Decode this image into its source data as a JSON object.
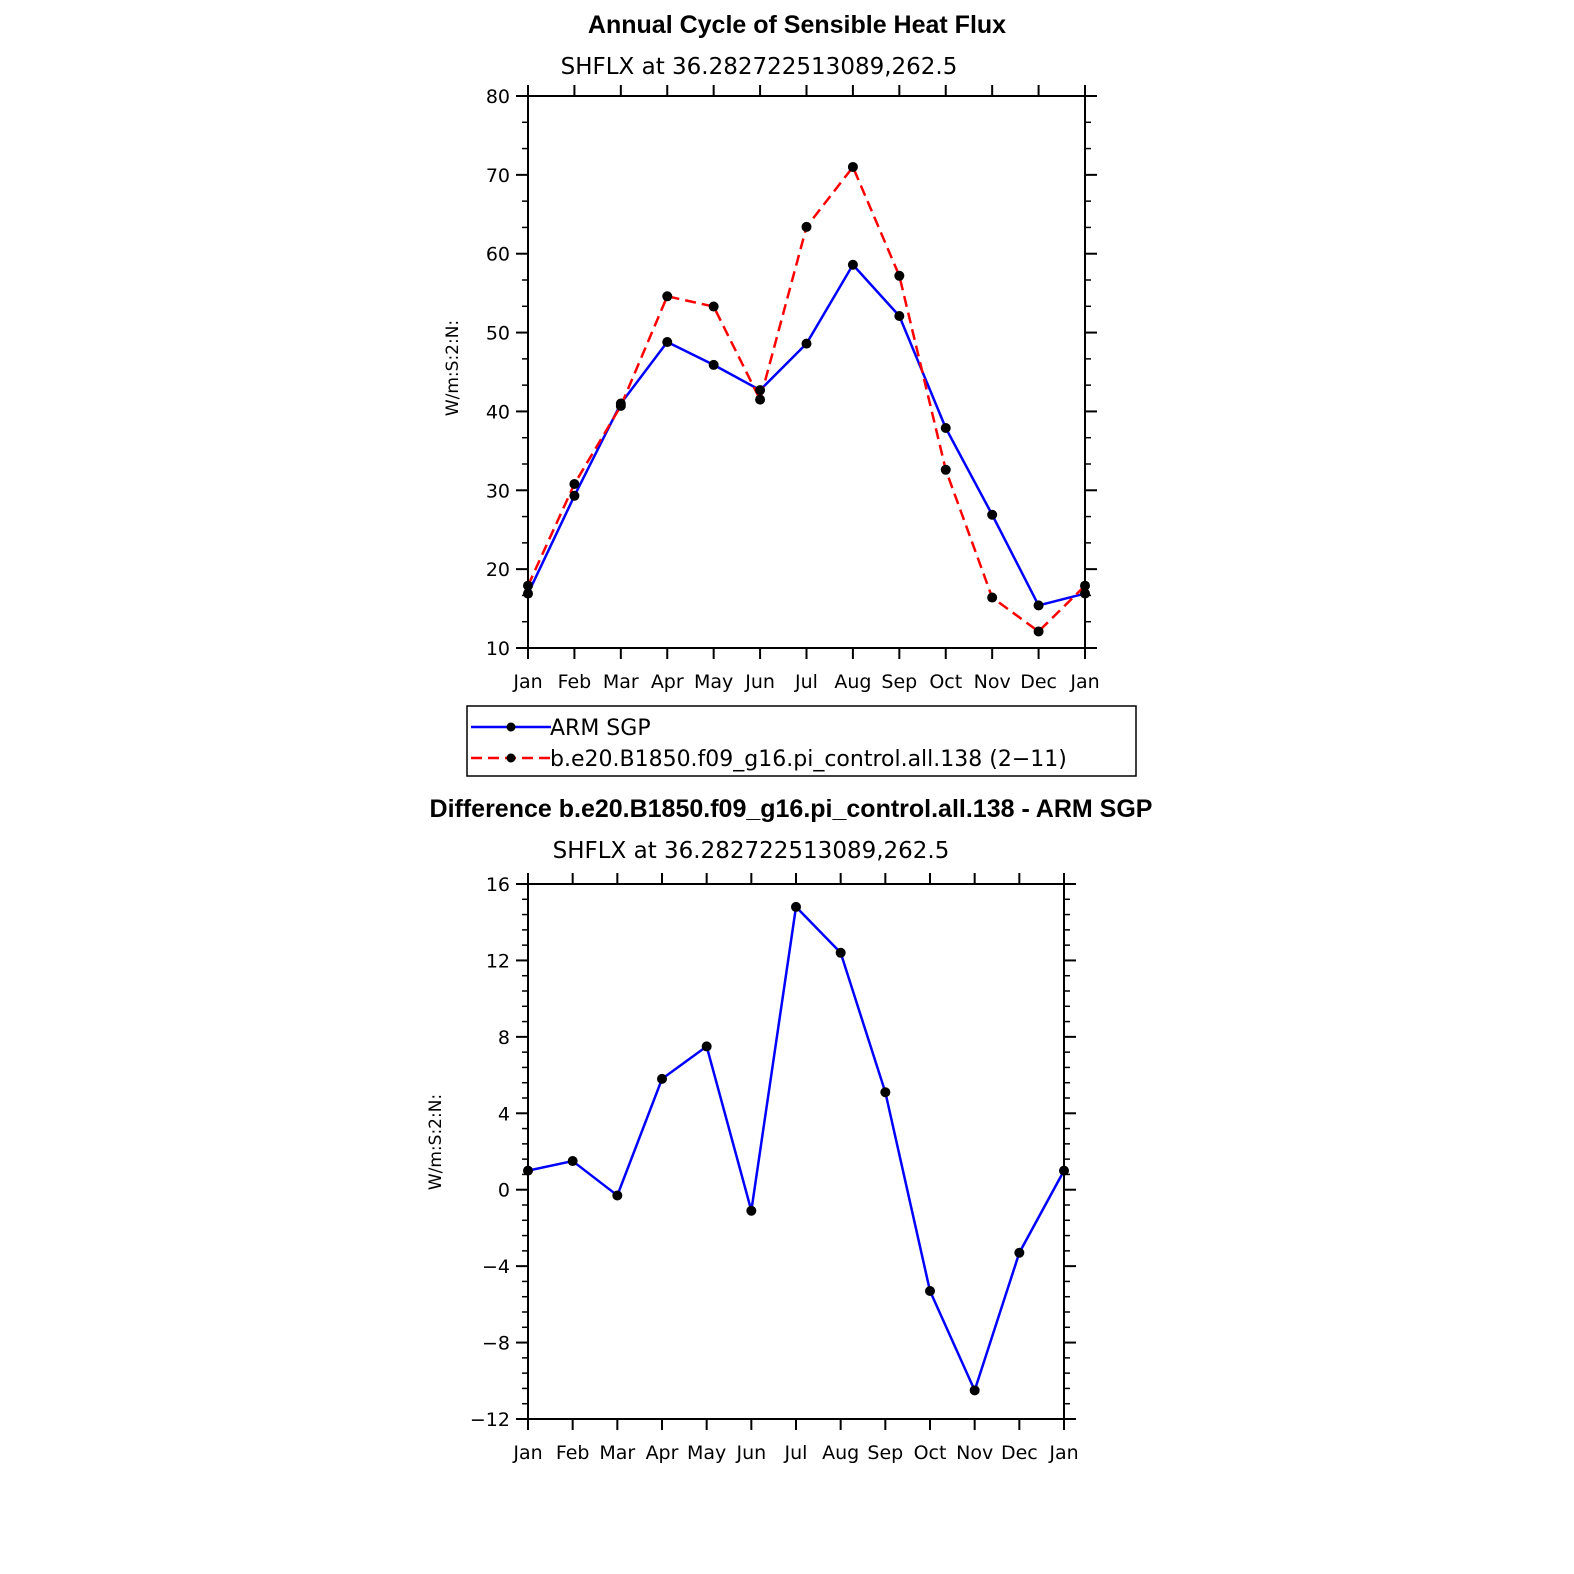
{
  "chart_data": [
    {
      "type": "line",
      "title": "Annual Cycle of Sensible Heat Flux",
      "subtitle": "SHFLX at 36.282722513089,262.5",
      "ylabel": "W/m:S:2:N:",
      "xlabel": "",
      "categories": [
        "Jan",
        "Feb",
        "Mar",
        "Apr",
        "May",
        "Jun",
        "Jul",
        "Aug",
        "Sep",
        "Oct",
        "Nov",
        "Dec",
        "Jan"
      ],
      "ylim": [
        10,
        80
      ],
      "yticks": [
        10,
        20,
        30,
        40,
        50,
        60,
        70,
        80
      ],
      "series": [
        {
          "name": "ARM SGP",
          "color": "#0000ff",
          "dash": "solid",
          "values": [
            16.9,
            29.3,
            41.0,
            48.8,
            45.9,
            42.7,
            48.6,
            58.6,
            52.1,
            37.9,
            26.9,
            15.4,
            16.9
          ]
        },
        {
          "name": "b.e20.B1850.f09_g16.pi_control.all.138 (2−11)",
          "color": "#ff0000",
          "dash": "dashed",
          "values": [
            17.9,
            30.8,
            40.7,
            54.6,
            53.3,
            41.5,
            63.4,
            71.0,
            57.2,
            32.6,
            16.4,
            12.1,
            17.9
          ]
        }
      ],
      "legend_position": "below"
    },
    {
      "type": "line",
      "title": "Difference b.e20.B1850.f09_g16.pi_control.all.138 - ARM SGP",
      "subtitle": "SHFLX at 36.282722513089,262.5",
      "ylabel": "W/m:S:2:N:",
      "xlabel": "",
      "categories": [
        "Jan",
        "Feb",
        "Mar",
        "Apr",
        "May",
        "Jun",
        "Jul",
        "Aug",
        "Sep",
        "Oct",
        "Nov",
        "Dec",
        "Jan"
      ],
      "ylim": [
        -12,
        16
      ],
      "yticks": [
        -12,
        -8,
        -4,
        0,
        4,
        8,
        12,
        16
      ],
      "ytick_labels": [
        "−12",
        "−8",
        "−4",
        "0",
        "4",
        "8",
        "12",
        "16"
      ],
      "series": [
        {
          "color": "#0000ff",
          "dash": "solid",
          "values": [
            1.0,
            1.5,
            -0.3,
            5.8,
            7.5,
            -1.1,
            14.8,
            12.4,
            5.1,
            -5.3,
            -10.5,
            -3.3,
            1.0
          ]
        }
      ]
    }
  ]
}
